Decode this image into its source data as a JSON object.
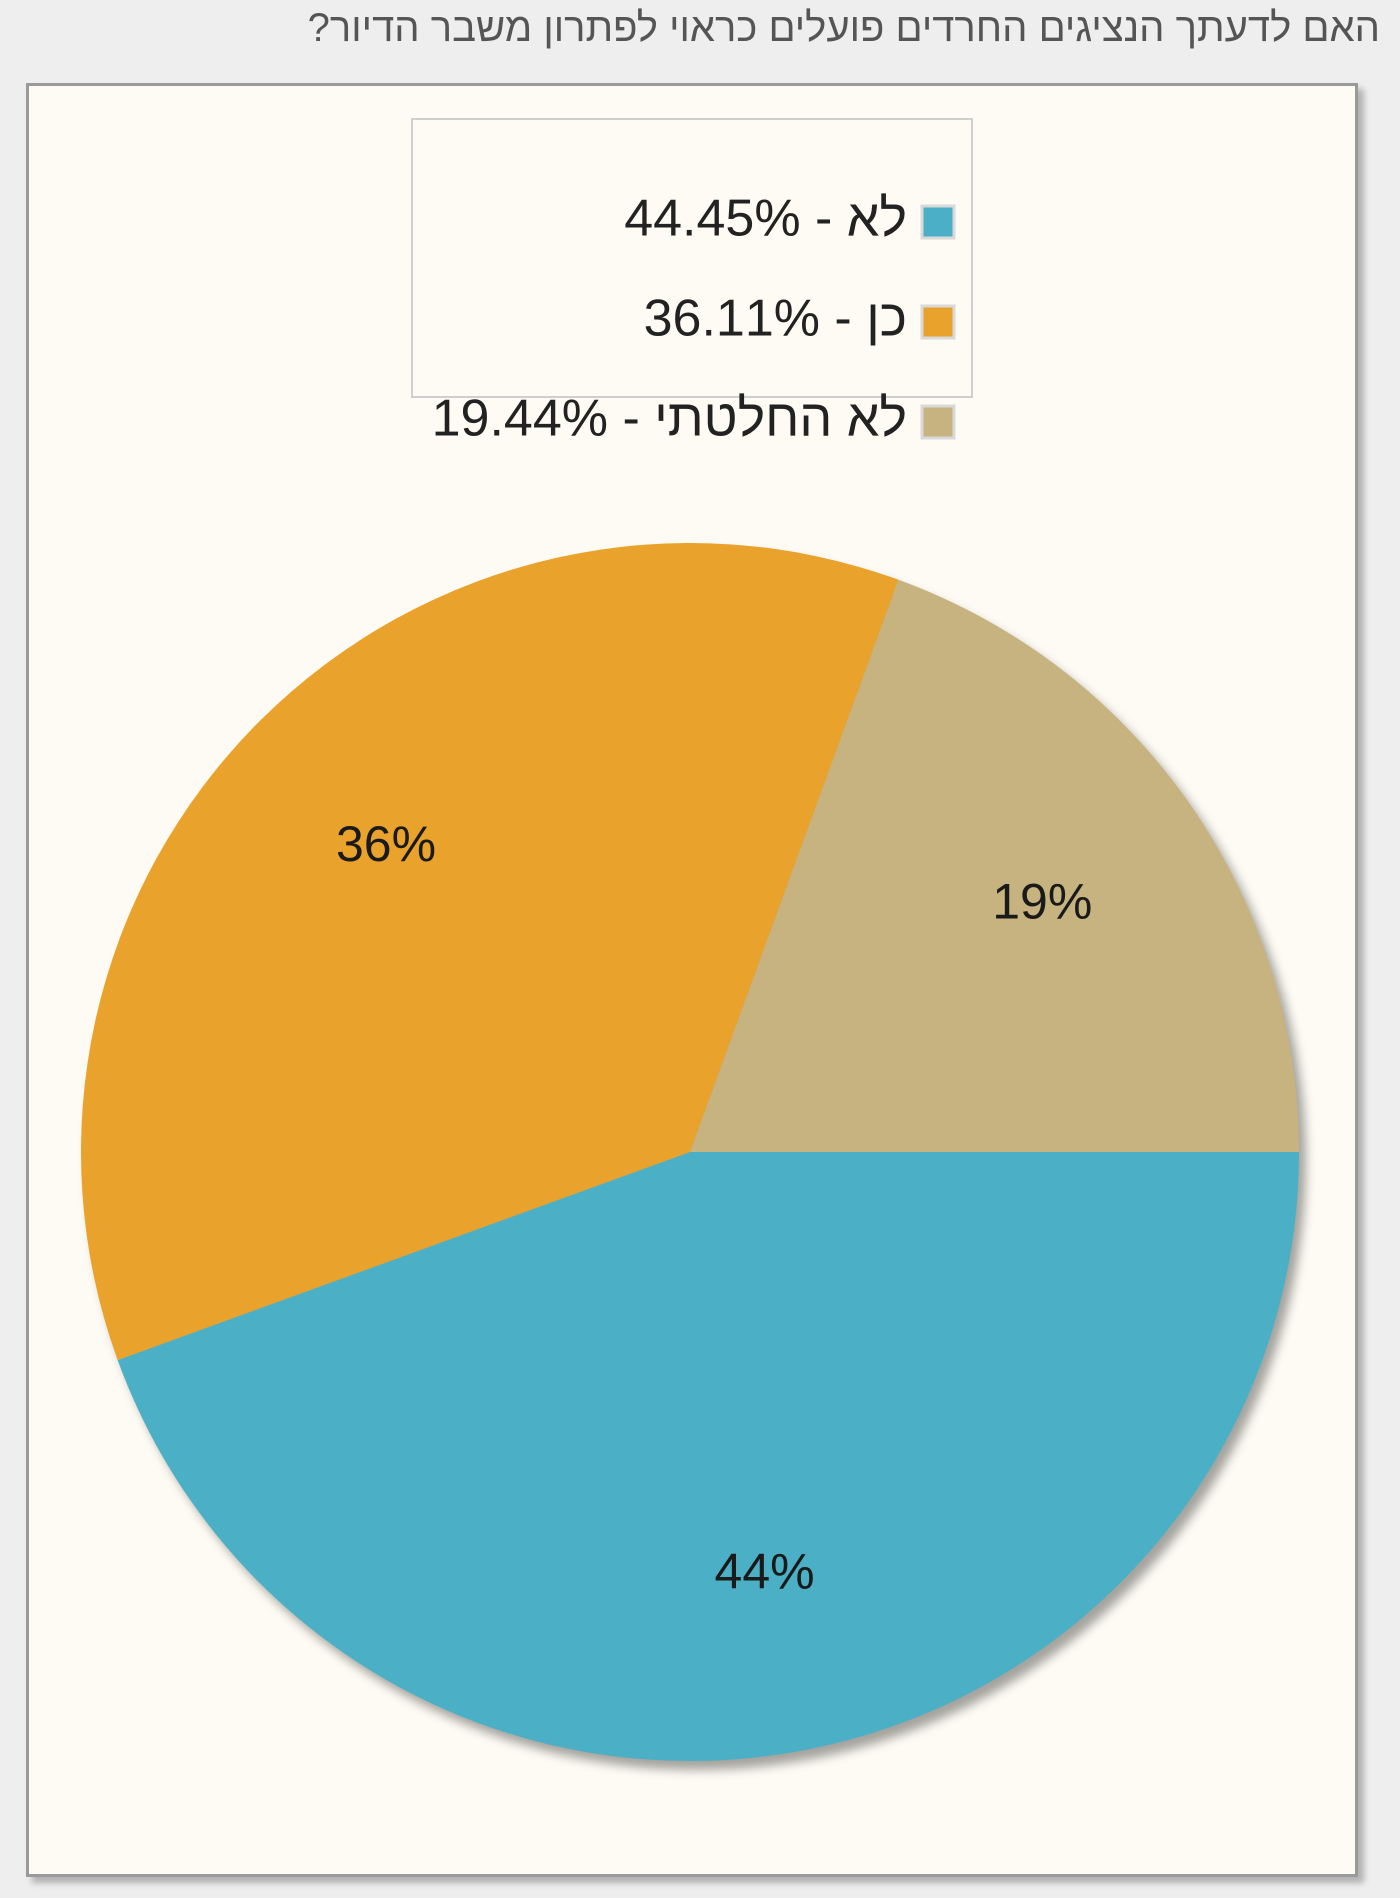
{
  "question": {
    "text": "האם לדעתך הנציגים החרדים פועלים כראוי לפתרון משבר הדיור?"
  },
  "colors": {
    "frame_background": "#fdfbf3",
    "frame_border": "#9a9a9a",
    "title_text": "#555555"
  },
  "chart_data": {
    "type": "pie",
    "title": "האם לדעתך הנציגים החרדים פועלים כראוי לפתרון משבר הדיור?",
    "legend_position": "top-center",
    "start_angle_deg": 0,
    "direction": "clockwise",
    "slices": [
      {
        "name": "לא",
        "value": 44.45,
        "legend": "לא - 44.45%",
        "label": "44%",
        "color": "#4bb0c6"
      },
      {
        "name": "כן",
        "value": 36.11,
        "legend": "כן - 36.11%",
        "label": "36%",
        "color": "#e9a22b"
      },
      {
        "name": "לא החלטתי",
        "value": 19.44,
        "legend": "לא החלטתי - 19.44%",
        "label": "19%",
        "color": "#c7b37f"
      }
    ]
  }
}
